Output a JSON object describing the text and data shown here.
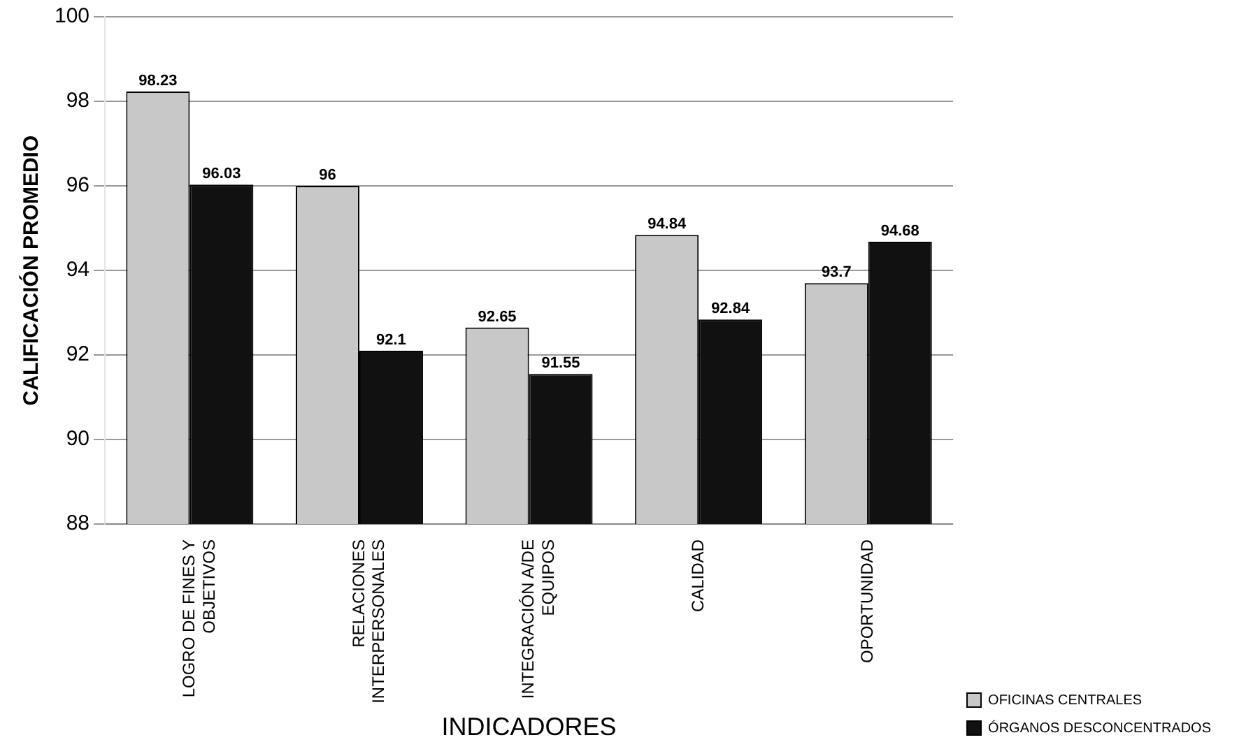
{
  "chart_data": {
    "type": "bar",
    "xlabel": "INDICADORES",
    "ylabel": "CALIFICACIÓN PROMEDIO",
    "categories": [
      "LOGRO DE FINES Y\nOBJETIVOS",
      "RELACIONES\nINTERPERSONALES",
      "INTEGRACIÓN A/DE\nEQUIPOS",
      "CALIDAD",
      "OPORTUNIDAD"
    ],
    "series": [
      {
        "name": "OFICINAS CENTRALES",
        "color": "#c8c8c8",
        "values": [
          98.23,
          96,
          92.65,
          94.84,
          93.7
        ]
      },
      {
        "name": "ÓRGANOS DESCONCENTRADOS",
        "color": "#111111",
        "values": [
          96.03,
          92.1,
          91.55,
          92.84,
          94.68
        ]
      }
    ],
    "ylim": [
      88,
      100
    ],
    "yticks": [
      88,
      90,
      92,
      94,
      96,
      98,
      100
    ],
    "grid": "y",
    "legend": "bottom right",
    "data_labels": true
  }
}
